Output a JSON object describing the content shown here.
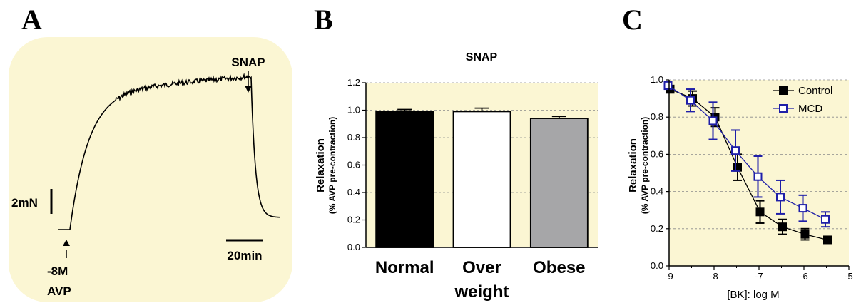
{
  "panels": {
    "a": {
      "letter": "A",
      "event_labels": {
        "snap": "SNAP",
        "avp_dose": "-8M",
        "avp": "AVP"
      },
      "scale_bars": {
        "force": "2mN",
        "time": "20min"
      },
      "colors": {
        "background": "#fbf6d3",
        "trace": "#000000"
      }
    },
    "b": {
      "letter": "B"
    },
    "c": {
      "letter": "C"
    }
  },
  "chart_data": [
    {
      "panel": "B",
      "type": "bar",
      "title": "SNAP",
      "ylabel_line1": "Relaxation",
      "ylabel_line2": "(% AVP pre-contraction)",
      "categories": [
        "Normal",
        "Over",
        "Obese"
      ],
      "category_line2": [
        "",
        "weight",
        ""
      ],
      "values": [
        0.99,
        0.99,
        0.94
      ],
      "errors": [
        0.015,
        0.025,
        0.015
      ],
      "bar_colors": [
        "#000000",
        "#ffffff",
        "#a6a6a8"
      ],
      "ylim": [
        0,
        1.2
      ],
      "yticks": [
        "0.0",
        "0.2",
        "0.4",
        "0.6",
        "0.8",
        "1.0",
        "1.2"
      ],
      "plot_background": "#fbf6d3",
      "grid": true
    },
    {
      "panel": "C",
      "type": "line",
      "xlabel": "[BK]: log M",
      "ylabel_line1": "Relaxation",
      "ylabel_line2": "(% AVP pre-contraction)",
      "xlim": [
        -9,
        -5
      ],
      "ylim": [
        0,
        1.0
      ],
      "xticks": [
        "-9",
        "-8",
        "-7",
        "-6",
        "-5"
      ],
      "yticks": [
        "0.0",
        "0.2",
        "0.4",
        "0.6",
        "0.8",
        "1.0"
      ],
      "plot_background": "#fbf6d3",
      "grid": true,
      "legend_position": "top-right",
      "x": [
        -9,
        -8.5,
        -8,
        -7.5,
        -7,
        -6.5,
        -6,
        -5.5
      ],
      "series": [
        {
          "name": "Control",
          "color": "#000000",
          "marker": "filled-square",
          "values": [
            0.95,
            0.9,
            0.8,
            0.53,
            0.29,
            0.21,
            0.17,
            0.14
          ],
          "errors": [
            0.02,
            0.04,
            0.05,
            0.07,
            0.06,
            0.04,
            0.03,
            0.01
          ]
        },
        {
          "name": "MCD",
          "color": "#1f1fa8",
          "marker": "open-square",
          "values": [
            0.97,
            0.89,
            0.78,
            0.62,
            0.48,
            0.37,
            0.31,
            0.25
          ],
          "errors": [
            0.02,
            0.06,
            0.1,
            0.11,
            0.11,
            0.09,
            0.07,
            0.04
          ]
        }
      ]
    }
  ]
}
